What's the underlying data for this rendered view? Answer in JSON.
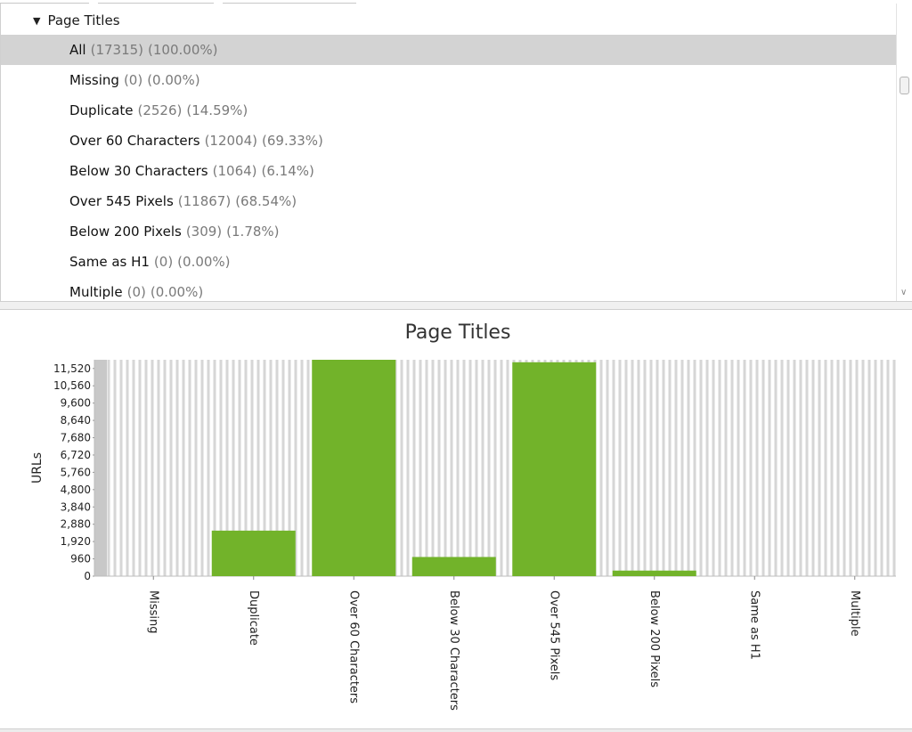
{
  "tree": {
    "header": "Page Titles",
    "rows": [
      {
        "label": "All",
        "count": "(17315)",
        "pct": "(100.00%)"
      },
      {
        "label": "Missing",
        "count": "(0)",
        "pct": "(0.00%)"
      },
      {
        "label": "Duplicate",
        "count": "(2526)",
        "pct": "(14.59%)"
      },
      {
        "label": "Over 60 Characters",
        "count": "(12004)",
        "pct": "(69.33%)"
      },
      {
        "label": "Below 30 Characters",
        "count": "(1064)",
        "pct": "(6.14%)"
      },
      {
        "label": "Over 545 Pixels",
        "count": "(11867)",
        "pct": "(68.54%)"
      },
      {
        "label": "Below 200 Pixels",
        "count": "(309)",
        "pct": "(1.78%)"
      },
      {
        "label": "Same as H1",
        "count": "(0)",
        "pct": "(0.00%)"
      },
      {
        "label": "Multiple",
        "count": "(0)",
        "pct": "(0.00%)"
      }
    ],
    "selected_index": 0
  },
  "chart_data": {
    "type": "bar",
    "title": "Page Titles",
    "ylabel": "URLs",
    "xlabel": "",
    "categories": [
      "Missing",
      "Duplicate",
      "Over 60 Characters",
      "Below 30 Characters",
      "Over 545 Pixels",
      "Below 200 Pixels",
      "Same as H1",
      "Multiple"
    ],
    "values": [
      0,
      2526,
      12004,
      1064,
      11867,
      309,
      0,
      0
    ],
    "ylim": [
      0,
      12004
    ],
    "yticks": [
      0,
      960,
      1920,
      2880,
      3840,
      4800,
      5760,
      6720,
      7680,
      8640,
      9600,
      10560,
      11520
    ],
    "ytick_labels": [
      "0",
      "960",
      "1,920",
      "2,880",
      "3,840",
      "4,800",
      "5,760",
      "6,720",
      "7,680",
      "8,640",
      "9,600",
      "10,560",
      "11,520"
    ],
    "bar_color": "#72b32a",
    "grid": true,
    "legend": "none"
  }
}
